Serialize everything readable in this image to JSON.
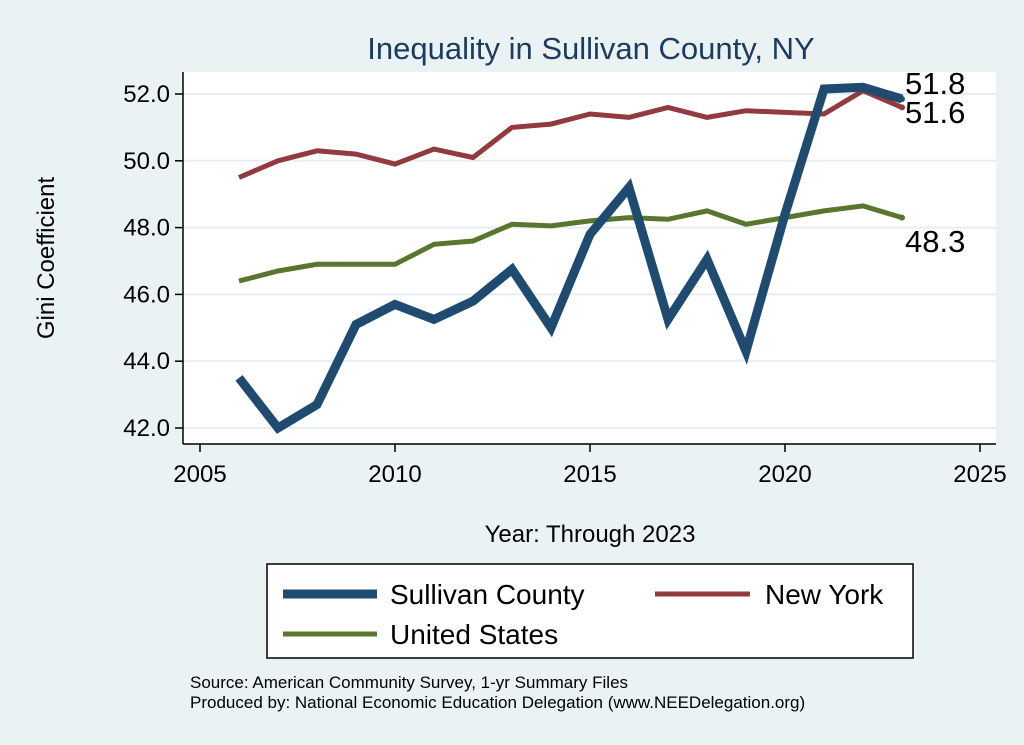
{
  "chart_data": {
    "type": "line",
    "title": "Inequality in Sullivan County, NY",
    "xlabel": "Year: Through 2023",
    "ylabel": "Gini Coefficient",
    "xlim": [
      2005,
      2025
    ],
    "ylim": [
      42.0,
      52.0
    ],
    "xticks": [
      "2005",
      "2010",
      "2015",
      "2020",
      "2025"
    ],
    "yticks": [
      "42.0",
      "44.0",
      "46.0",
      "48.0",
      "50.0",
      "52.0"
    ],
    "grid": true,
    "legend_position": "bottom",
    "x": [
      2006,
      2007,
      2008,
      2009,
      2010,
      2011,
      2012,
      2013,
      2014,
      2015,
      2016,
      2017,
      2018,
      2019,
      2020,
      2021,
      2022,
      2023
    ],
    "series": [
      {
        "name": "Sullivan County",
        "color": "#1f4b70",
        "values": [
          43.5,
          42.0,
          42.7,
          45.1,
          45.7,
          45.25,
          45.8,
          46.75,
          45.0,
          47.8,
          49.2,
          45.25,
          47.05,
          44.3,
          48.4,
          52.15,
          52.2,
          51.85
        ],
        "end_label": "51.8"
      },
      {
        "name": "New York",
        "color": "#913a3f",
        "values": [
          49.5,
          50.0,
          50.3,
          50.2,
          49.9,
          50.35,
          50.1,
          51.0,
          51.1,
          51.4,
          51.3,
          51.6,
          51.3,
          51.5,
          51.45,
          51.4,
          52.1,
          51.6
        ],
        "end_label": "51.6"
      },
      {
        "name": "United States",
        "color": "#58762e",
        "values": [
          46.4,
          46.7,
          46.9,
          46.9,
          46.9,
          47.5,
          47.6,
          48.1,
          48.05,
          48.2,
          48.3,
          48.25,
          48.5,
          48.1,
          48.3,
          48.5,
          48.65,
          48.3
        ],
        "end_label": "48.3"
      }
    ],
    "annotations": [
      "Source: American Community Survey, 1-yr Summary Files",
      "Produced by: National Economic Education Delegation (www.NEEDelegation.org)"
    ]
  },
  "colors": {
    "background": "#eaf2f3",
    "plot_background": "#ffffff",
    "title": "#1c3b5e",
    "grid": "#e8eef0"
  }
}
